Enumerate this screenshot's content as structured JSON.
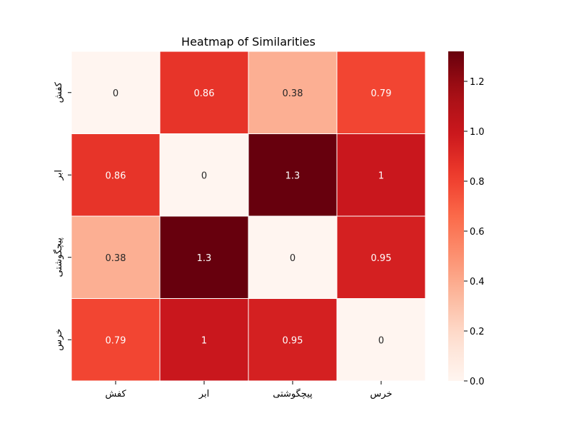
{
  "chart_data": {
    "type": "heatmap",
    "title": "Heatmap of Similarities",
    "xlabel": "",
    "ylabel": "",
    "x_categories": [
      "کفش",
      "ابر",
      "پیچگوشتی",
      "خرس"
    ],
    "y_categories": [
      "کفش",
      "ابر",
      "پیچگوشتی",
      "خرس"
    ],
    "values": [
      [
        0,
        0.86,
        0.38,
        0.79
      ],
      [
        0.86,
        0,
        1.32,
        1.0
      ],
      [
        0.38,
        1.32,
        0,
        0.95
      ],
      [
        0.79,
        1.0,
        0.95,
        0
      ]
    ],
    "annotations": [
      [
        "0",
        "0.86",
        "0.38",
        "0.79"
      ],
      [
        "0.86",
        "0",
        "1.3",
        "1"
      ],
      [
        "0.38",
        "1.3",
        "0",
        "0.95"
      ],
      [
        "0.79",
        "1",
        "0.95",
        "0"
      ]
    ],
    "colormap": "Reds",
    "colorbar": {
      "vmin": 0,
      "vmax": 1.32,
      "ticks": [
        0,
        0.2,
        0.4,
        0.6,
        0.8,
        1.0,
        1.2
      ],
      "tick_labels": [
        "0.0",
        "0.2",
        "0.4",
        "0.6",
        "0.8",
        "1.0",
        "1.2"
      ]
    },
    "grid": false,
    "cell_line_color": "#ffffff"
  }
}
